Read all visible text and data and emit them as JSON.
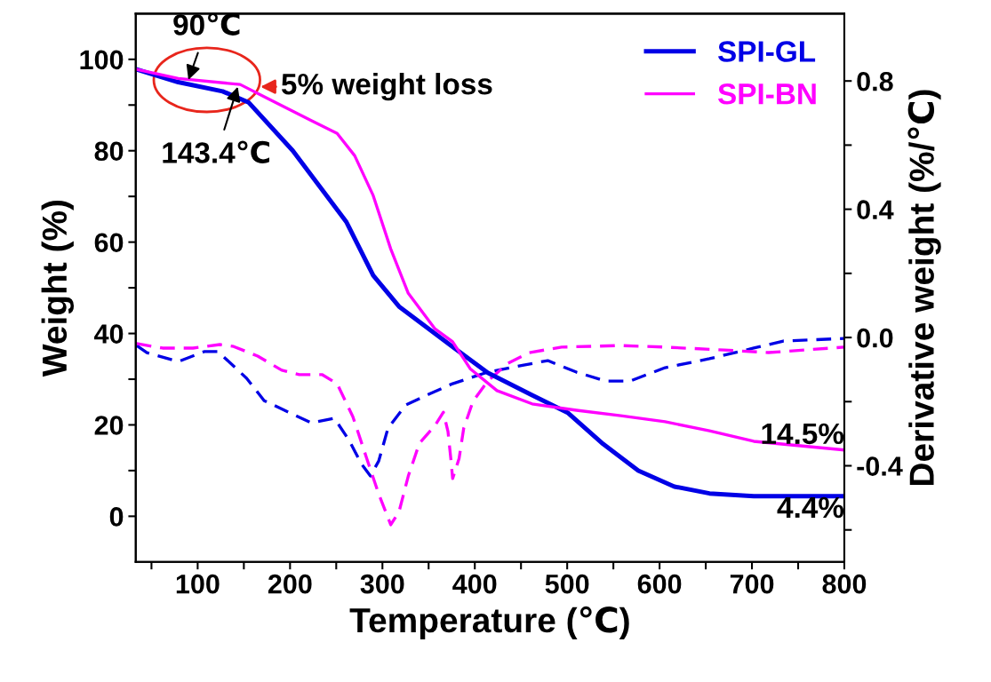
{
  "chart_data": {
    "type": "line",
    "xlabel": "Temperature (℃)",
    "ylabel": "Weight (%)",
    "y2label": "Derivative weight (%/℃)",
    "xlim": [
      33,
      800
    ],
    "ylim": [
      -10,
      110
    ],
    "y2lim": [
      -0.7,
      1.01
    ],
    "xticks": [
      {
        "value": 50,
        "label": null
      },
      100,
      {
        "value": 150,
        "label": null
      },
      200,
      {
        "value": 250,
        "label": null
      },
      300,
      {
        "value": 350,
        "label": null
      },
      400,
      {
        "value": 450,
        "label": null
      },
      500,
      {
        "value": 550,
        "label": null
      },
      600,
      {
        "value": 650,
        "label": null
      },
      700,
      {
        "value": 750,
        "label": null
      },
      800
    ],
    "yticks": [
      0,
      {
        "value": 10,
        "label": null
      },
      20,
      {
        "value": 30,
        "label": null
      },
      40,
      {
        "value": 50,
        "label": null
      },
      60,
      {
        "value": 70,
        "label": null
      },
      80,
      {
        "value": 90,
        "label": null
      },
      100
    ],
    "y2ticks": [
      {
        "value": -0.6,
        "label": null
      },
      -0.4,
      {
        "value": -0.2,
        "label": null
      },
      {
        "value": 0.0,
        "label": "0.0"
      },
      {
        "value": 0.2,
        "label": null
      },
      0.4,
      {
        "value": 0.6,
        "label": null
      },
      0.8
    ],
    "legend": "top right",
    "grid": false,
    "line_style": "solid",
    "series": [
      {
        "name": "SPI-GL",
        "color": "#0000e6",
        "x": [
          34,
          79,
          127,
          155,
          203,
          261,
          290,
          318,
          366,
          414,
          462,
          501,
          539,
          577,
          616,
          654,
          702,
          800
        ],
        "values": [
          97.8,
          95,
          93,
          90.6,
          80,
          64.4,
          52.7,
          45.9,
          38.6,
          31.4,
          26.5,
          22.6,
          15.8,
          10,
          6.5,
          5.0,
          4.4,
          4.4
        ]
      },
      {
        "name": "SPI-BN",
        "color": "#ff00ff",
        "x": [
          34,
          79,
          146,
          175,
          222,
          251,
          270,
          290,
          309,
          328,
          357,
          376,
          395,
          424,
          462,
          510,
          558,
          606,
          654,
          702,
          800
        ],
        "values": [
          97.8,
          95.8,
          94.5,
          91.5,
          86.7,
          83.8,
          78.9,
          70.2,
          58.5,
          48.8,
          41,
          38.2,
          32.3,
          27.5,
          24.6,
          23.2,
          22,
          20.7,
          18.7,
          16.4,
          14.5
        ]
      },
      {
        "color": "#0000e6",
        "axis": "y2",
        "line_style": "dashed",
        "x": [
          34,
          45,
          79,
          107,
          122,
          153,
          172,
          194,
          223,
          248,
          264,
          277,
          287,
          296,
          306,
          325,
          350,
          376,
          414,
          453,
          479,
          510,
          542,
          568,
          606,
          654,
          702,
          734,
          800
        ],
        "values": [
          -0.025,
          -0.047,
          -0.075,
          -0.044,
          -0.044,
          -0.127,
          -0.197,
          -0.227,
          -0.266,
          -0.252,
          -0.321,
          -0.393,
          -0.432,
          -0.385,
          -0.283,
          -0.211,
          -0.177,
          -0.144,
          -0.108,
          -0.086,
          -0.072,
          -0.108,
          -0.136,
          -0.136,
          -0.094,
          -0.066,
          -0.033,
          -0.011,
          -0.003
        ]
      },
      {
        "color": "#ff00ff",
        "axis": "y2",
        "line_style": "dashed",
        "x": [
          34,
          62,
          95,
          124,
          139,
          165,
          191,
          210,
          235,
          251,
          268,
          283,
          296,
          309,
          318,
          328,
          340,
          357,
          366,
          371,
          374,
          376,
          383,
          388,
          398,
          414,
          436,
          459,
          494,
          558,
          606,
          670,
          718,
          800
        ],
        "values": [
          -0.019,
          -0.033,
          -0.033,
          -0.022,
          -0.028,
          -0.058,
          -0.102,
          -0.116,
          -0.116,
          -0.144,
          -0.247,
          -0.377,
          -0.488,
          -0.584,
          -0.543,
          -0.432,
          -0.33,
          -0.274,
          -0.233,
          -0.294,
          -0.377,
          -0.44,
          -0.377,
          -0.283,
          -0.199,
          -0.136,
          -0.08,
          -0.047,
          -0.03,
          -0.025,
          -0.03,
          -0.039,
          -0.047,
          -0.03
        ]
      }
    ],
    "annotations": [
      {
        "text": "90℃",
        "x": 90,
        "y": 95.5
      },
      {
        "text": "143.4℃",
        "x": 143.4,
        "y": 94
      },
      "5% weight loss",
      {
        "text": "14.5%",
        "x": 800,
        "y": 14.5
      },
      {
        "text": "4.4%",
        "x": 800,
        "y": 4.4
      }
    ]
  }
}
